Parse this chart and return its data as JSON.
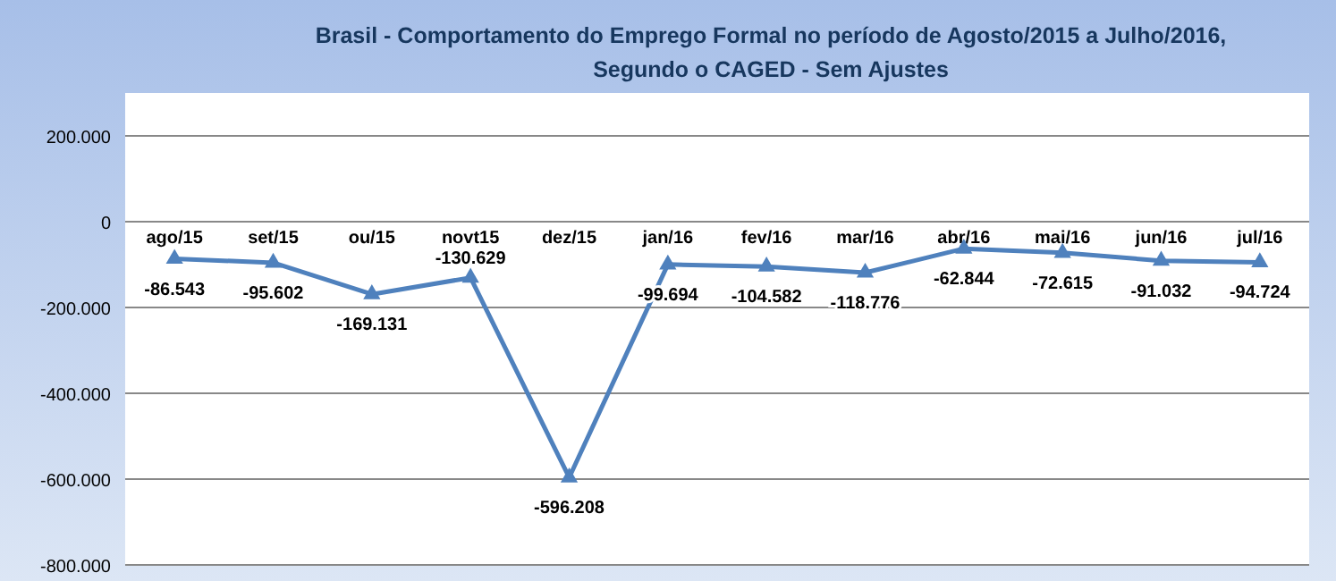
{
  "chart_data": {
    "type": "line",
    "title": "Brasil - Comportamento do Emprego Formal no período de Agosto/2015 a Julho/2016, Segundo o CAGED - Sem Ajustes",
    "categories": [
      "ago/15",
      "set/15",
      "ou/15",
      "novt15",
      "dez/15",
      "jan/16",
      "fev/16",
      "mar/16",
      "abr/16",
      "mai/16",
      "jun/16",
      "jul/16"
    ],
    "series": [
      {
        "color": "#4f81bd",
        "values": [
          -86543,
          -95602,
          -169131,
          -130629,
          -596208,
          -99694,
          -104582,
          -118776,
          -62844,
          -72615,
          -91032,
          -94724
        ],
        "value_labels": [
          "-86.543",
          "-95.602",
          "-169.131",
          "-130.629",
          "-596.208",
          "-99.694",
          "-104.582",
          "-118.776",
          "-62.844",
          "-72.615",
          "-91.032",
          "-94.724"
        ]
      }
    ],
    "ylim": [
      -800000,
      300000
    ],
    "yticks": [
      {
        "value": 200000,
        "label": "200.000"
      },
      0,
      {
        "value": -200000,
        "label": "-200.000"
      },
      {
        "value": -400000,
        "label": "-400.000"
      },
      {
        "value": -600000,
        "label": "-600.000"
      },
      {
        "value": -800000,
        "label": "-800.000"
      }
    ],
    "grid": "y",
    "marker": "triangle",
    "line_style": "solid"
  }
}
